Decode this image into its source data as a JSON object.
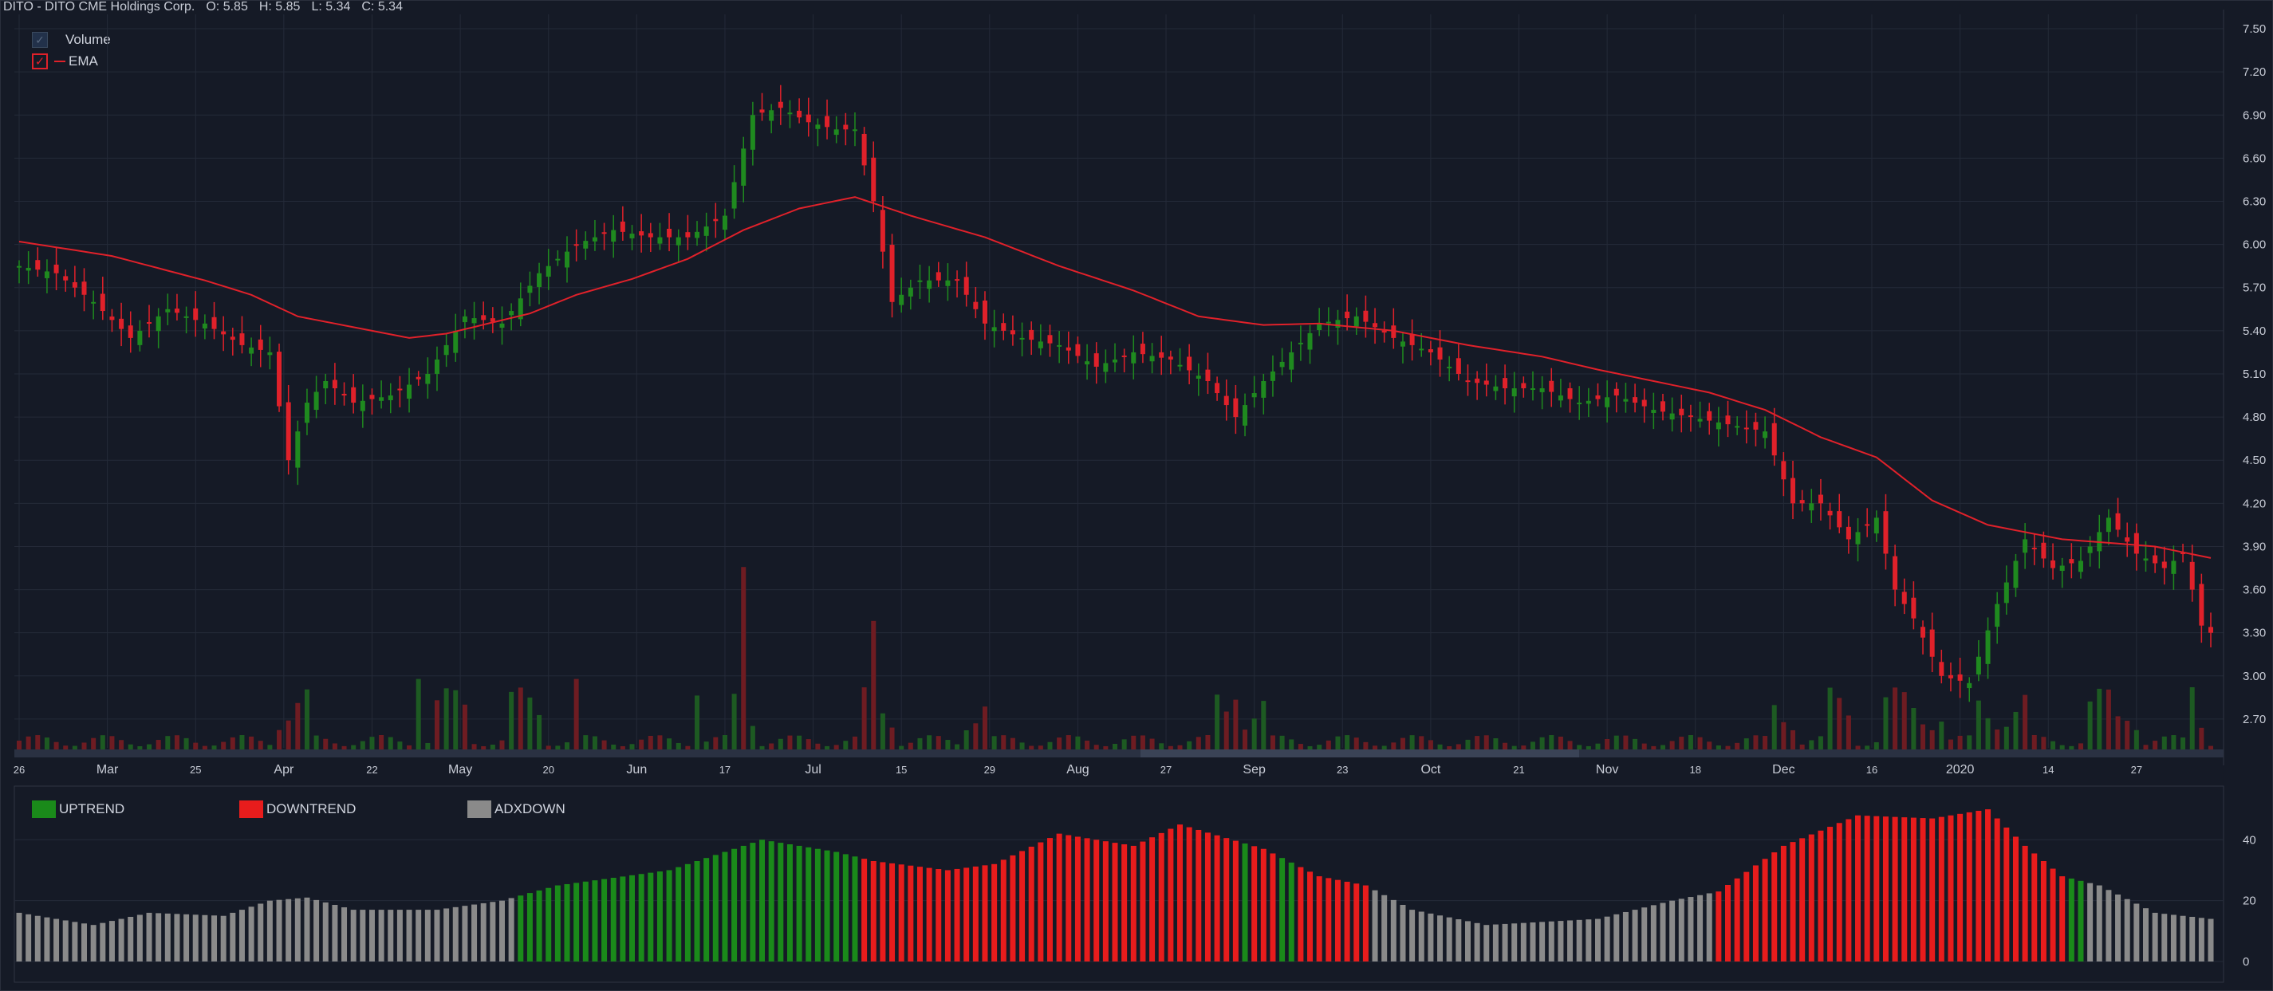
{
  "header": {
    "symbol": "DITO - DITO CME Holdings Corp.",
    "open": "O: 5.85",
    "high": "H: 5.85",
    "low": "L: 5.34",
    "close": "C: 5.34"
  },
  "legend": {
    "volume_label": "Volume",
    "ema_label": "EMA"
  },
  "indicator_legend": {
    "up": "UPTREND",
    "down": "DOWNTREND",
    "adx": "ADXDOWN"
  },
  "colors": {
    "bull": "#1f8a1f",
    "bear": "#e0212a",
    "ema": "#e0212a",
    "vol_bull": "#1d5a22",
    "vol_bear": "#6e1c22",
    "uptrend": "#1a8a1a",
    "downtrend": "#e81c1c",
    "adxdown": "#8a8a8a",
    "grid": "#242a38",
    "bg": "#151a26"
  },
  "chart_data": [
    {
      "type": "candlestick",
      "ylim": [
        2.5,
        7.6
      ],
      "y_ticks": [
        "7.50",
        "7.20",
        "6.90",
        "6.60",
        "6.30",
        "6.00",
        "5.70",
        "5.40",
        "5.10",
        "4.80",
        "4.50",
        "4.20",
        "3.90",
        "3.60",
        "3.30",
        "3.00",
        "2.70"
      ],
      "x_labels": [
        "26",
        "Mar",
        "25",
        "Apr",
        "22",
        "May",
        "20",
        "Jun",
        "17",
        "Jul",
        "15",
        "29",
        "Aug",
        "27",
        "Sep",
        "23",
        "Oct",
        "21",
        "Nov",
        "18",
        "Dec",
        "16",
        "2020",
        "14",
        "27"
      ],
      "close_anchors": [
        [
          0,
          5.85
        ],
        [
          4,
          5.8
        ],
        [
          8,
          5.6
        ],
        [
          12,
          5.35
        ],
        [
          16,
          5.55
        ],
        [
          20,
          5.45
        ],
        [
          24,
          5.3
        ],
        [
          27,
          5.25
        ],
        [
          29,
          4.5
        ],
        [
          31,
          4.9
        ],
        [
          33,
          5.05
        ],
        [
          36,
          4.9
        ],
        [
          40,
          4.95
        ],
        [
          44,
          5.1
        ],
        [
          48,
          5.5
        ],
        [
          52,
          5.45
        ],
        [
          56,
          5.8
        ],
        [
          60,
          6.0
        ],
        [
          64,
          6.1
        ],
        [
          68,
          6.05
        ],
        [
          72,
          6.05
        ],
        [
          76,
          6.2
        ],
        [
          79,
          6.9
        ],
        [
          82,
          6.95
        ],
        [
          85,
          6.85
        ],
        [
          88,
          6.8
        ],
        [
          90,
          6.8
        ],
        [
          92,
          6.3
        ],
        [
          94,
          5.6
        ],
        [
          97,
          5.75
        ],
        [
          101,
          5.75
        ],
        [
          104,
          5.45
        ],
        [
          108,
          5.35
        ],
        [
          112,
          5.3
        ],
        [
          116,
          5.15
        ],
        [
          120,
          5.25
        ],
        [
          124,
          5.2
        ],
        [
          128,
          5.05
        ],
        [
          131,
          4.8
        ],
        [
          134,
          5.05
        ],
        [
          137,
          5.25
        ],
        [
          140,
          5.45
        ],
        [
          144,
          5.5
        ],
        [
          148,
          5.35
        ],
        [
          152,
          5.25
        ],
        [
          156,
          5.05
        ],
        [
          160,
          5.0
        ],
        [
          164,
          5.0
        ],
        [
          168,
          4.9
        ],
        [
          172,
          4.95
        ],
        [
          176,
          4.85
        ],
        [
          180,
          4.8
        ],
        [
          184,
          4.75
        ],
        [
          188,
          4.7
        ],
        [
          191,
          4.2
        ],
        [
          194,
          4.2
        ],
        [
          197,
          3.95
        ],
        [
          200,
          4.1
        ],
        [
          202,
          3.6
        ],
        [
          204,
          3.4
        ],
        [
          207,
          3.0
        ],
        [
          210,
          2.95
        ],
        [
          213,
          3.5
        ],
        [
          216,
          3.95
        ],
        [
          219,
          3.75
        ],
        [
          222,
          3.8
        ],
        [
          225,
          4.1
        ],
        [
          228,
          3.85
        ],
        [
          231,
          3.75
        ],
        [
          233,
          3.85
        ],
        [
          235,
          3.35
        ],
        [
          236,
          3.3
        ]
      ],
      "ema_anchors": [
        [
          0,
          6.02
        ],
        [
          10,
          5.92
        ],
        [
          20,
          5.75
        ],
        [
          25,
          5.65
        ],
        [
          30,
          5.5
        ],
        [
          38,
          5.4
        ],
        [
          42,
          5.35
        ],
        [
          46,
          5.38
        ],
        [
          55,
          5.52
        ],
        [
          60,
          5.65
        ],
        [
          66,
          5.76
        ],
        [
          72,
          5.9
        ],
        [
          78,
          6.1
        ],
        [
          84,
          6.25
        ],
        [
          90,
          6.33
        ],
        [
          96,
          6.2
        ],
        [
          104,
          6.05
        ],
        [
          112,
          5.85
        ],
        [
          120,
          5.68
        ],
        [
          127,
          5.5
        ],
        [
          134,
          5.44
        ],
        [
          140,
          5.45
        ],
        [
          148,
          5.4
        ],
        [
          156,
          5.3
        ],
        [
          164,
          5.22
        ],
        [
          170,
          5.13
        ],
        [
          176,
          5.05
        ],
        [
          182,
          4.97
        ],
        [
          188,
          4.85
        ],
        [
          194,
          4.66
        ],
        [
          200,
          4.52
        ],
        [
          206,
          4.22
        ],
        [
          212,
          4.05
        ],
        [
          220,
          3.95
        ],
        [
          230,
          3.9
        ],
        [
          236,
          3.82
        ]
      ],
      "volume_spikes": [
        [
          43,
          0.34
        ],
        [
          78,
          0.88
        ],
        [
          92,
          0.62
        ],
        [
          73,
          0.26
        ],
        [
          60,
          0.34
        ],
        [
          131,
          0.24
        ],
        [
          226,
          0.16
        ],
        [
          234,
          0.3
        ]
      ]
    },
    {
      "type": "bar",
      "ylim": [
        0,
        55
      ],
      "y_ticks": [
        "40",
        "20",
        "0"
      ],
      "segments": [
        {
          "from": 0,
          "to": 53,
          "state": "adxdown"
        },
        {
          "from": 54,
          "to": 90,
          "state": "uptrend"
        },
        {
          "from": 91,
          "to": 131,
          "state": "downtrend"
        },
        {
          "from": 132,
          "to": 132,
          "state": "uptrend"
        },
        {
          "from": 133,
          "to": 135,
          "state": "downtrend"
        },
        {
          "from": 136,
          "to": 137,
          "state": "uptrend"
        },
        {
          "from": 138,
          "to": 145,
          "state": "downtrend"
        },
        {
          "from": 146,
          "to": 182,
          "state": "adxdown"
        },
        {
          "from": 183,
          "to": 220,
          "state": "downtrend"
        },
        {
          "from": 221,
          "to": 222,
          "state": "uptrend"
        },
        {
          "from": 223,
          "to": 236,
          "state": "adxdown"
        }
      ],
      "value_anchors": [
        [
          0,
          16
        ],
        [
          8,
          12
        ],
        [
          14,
          16
        ],
        [
          22,
          15
        ],
        [
          27,
          20
        ],
        [
          31,
          21
        ],
        [
          36,
          17
        ],
        [
          45,
          17
        ],
        [
          52,
          20
        ],
        [
          58,
          25
        ],
        [
          70,
          30
        ],
        [
          80,
          40
        ],
        [
          88,
          36
        ],
        [
          92,
          33
        ],
        [
          100,
          30
        ],
        [
          105,
          32
        ],
        [
          112,
          42
        ],
        [
          120,
          38
        ],
        [
          125,
          45
        ],
        [
          134,
          37
        ],
        [
          140,
          28
        ],
        [
          145,
          25
        ],
        [
          150,
          17
        ],
        [
          158,
          12
        ],
        [
          164,
          13
        ],
        [
          170,
          14
        ],
        [
          178,
          20
        ],
        [
          183,
          23
        ],
        [
          190,
          38
        ],
        [
          198,
          48
        ],
        [
          206,
          47
        ],
        [
          212,
          50
        ],
        [
          216,
          38
        ],
        [
          220,
          28
        ],
        [
          224,
          25
        ],
        [
          230,
          16
        ],
        [
          236,
          14
        ]
      ]
    }
  ]
}
